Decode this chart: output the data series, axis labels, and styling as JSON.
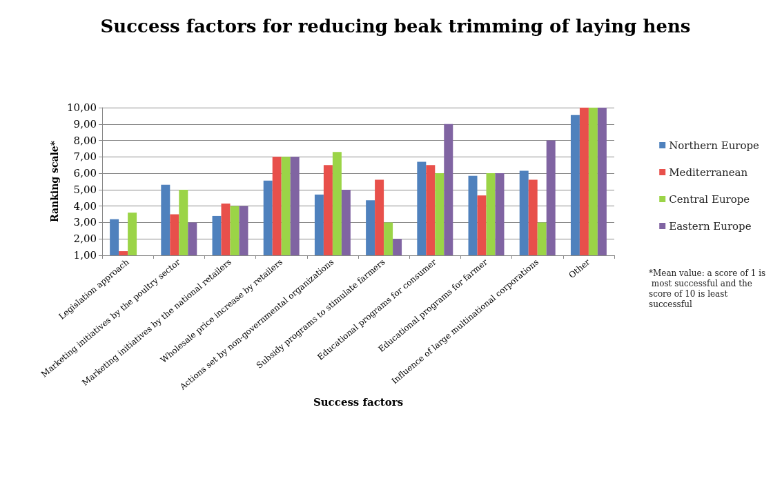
{
  "chart_data": {
    "type": "bar",
    "title": "Success factors for reducing beak trimming of laying hens",
    "xlabel": "Success factors",
    "ylabel": "Ranking scale*",
    "categories": [
      "Legislation approach",
      "Marketing initiatives by the poultry sector",
      "Marketing initiatives by the national retailers",
      "Wholesale price increase by retailers",
      "Actions set by non-governmental organizations",
      "Subsidy programs to stimulate farmers",
      "Educational programs for consumer",
      "Educational programs for farmer",
      "Influence of large multinational corporations",
      "Other"
    ],
    "series": [
      {
        "name": "Northern Europe",
        "color": "#4f81bd",
        "values": [
          3.2,
          5.3,
          3.4,
          5.55,
          4.7,
          4.35,
          6.7,
          5.85,
          6.15,
          9.55
        ]
      },
      {
        "name": "Mediterranean",
        "color": "#e8504b",
        "values": [
          1.25,
          3.5,
          4.15,
          7.0,
          6.5,
          5.6,
          6.5,
          4.65,
          5.6,
          10
        ]
      },
      {
        "name": "Central Europe",
        "color": "#9bd447",
        "values": [
          3.6,
          5.0,
          4.0,
          7.0,
          7.3,
          3.0,
          6.0,
          6.0,
          3.0,
          10
        ]
      },
      {
        "name": "Eastern Europe",
        "color": "#8064a2",
        "values": [
          null,
          3.0,
          4.0,
          7.0,
          5.0,
          2.0,
          9.0,
          6.0,
          8.0,
          10
        ]
      }
    ],
    "ylim": [
      1,
      10
    ],
    "yticks": [
      {
        "value": 1,
        "label": "1,00"
      },
      {
        "value": 2,
        "label": "2,00"
      },
      {
        "value": 3,
        "label": "3,00"
      },
      {
        "value": 4,
        "label": "4,00"
      },
      {
        "value": 5,
        "label": "5,00"
      },
      {
        "value": 6,
        "label": "6,00"
      },
      {
        "value": 7,
        "label": "7,00"
      },
      {
        "value": 8,
        "label": "8,00"
      },
      {
        "value": 9,
        "label": "9,00"
      },
      {
        "value": 10,
        "label": "10,00"
      }
    ],
    "grid": "y",
    "legend": "right",
    "annotations": [
      "*Mean value: a score of 1 is most successful and the score of 10 is least successful"
    ]
  }
}
